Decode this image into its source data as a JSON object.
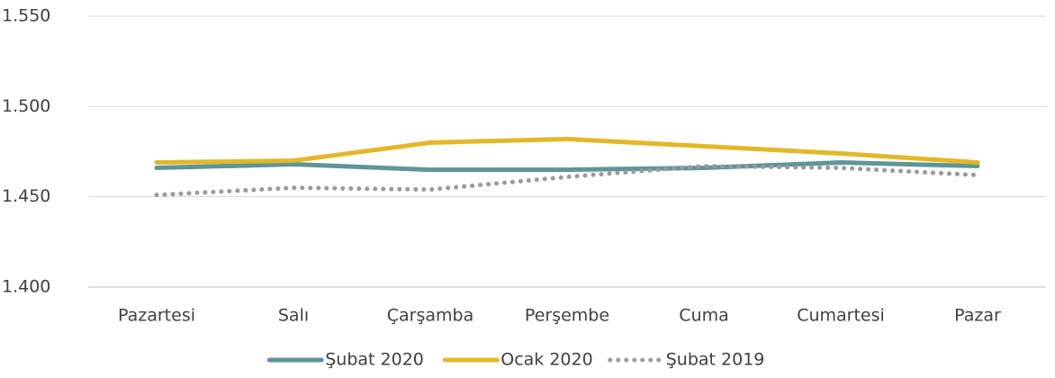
{
  "chart_data": {
    "type": "line",
    "categories": [
      "Pazartesi",
      "Salı",
      "Çarşamba",
      "Perşembe",
      "Cuma",
      "Cumartesi",
      "Pazar"
    ],
    "series": [
      {
        "name": "Şubat 2020",
        "color": "#5f9598",
        "style": "solid",
        "values": [
          1466,
          1468,
          1465,
          1465,
          1466,
          1469,
          1467
        ]
      },
      {
        "name": "Ocak 2020",
        "color": "#e2b829",
        "style": "solid",
        "values": [
          1469,
          1470,
          1480,
          1482,
          1478,
          1474,
          1469
        ]
      },
      {
        "name": "Şubat 2019",
        "color": "#9a9a9a",
        "style": "dotted",
        "values": [
          1451,
          1455,
          1454,
          1461,
          1467,
          1466,
          1462
        ]
      }
    ],
    "ylim": [
      1400,
      1550
    ],
    "yticks": [
      {
        "value": 1400,
        "label": "1.400"
      },
      {
        "value": 1450,
        "label": "1.450"
      },
      {
        "value": 1500,
        "label": "1.500"
      },
      {
        "value": 1550,
        "label": "1.550"
      }
    ],
    "grid": true,
    "legend": "bottom"
  }
}
